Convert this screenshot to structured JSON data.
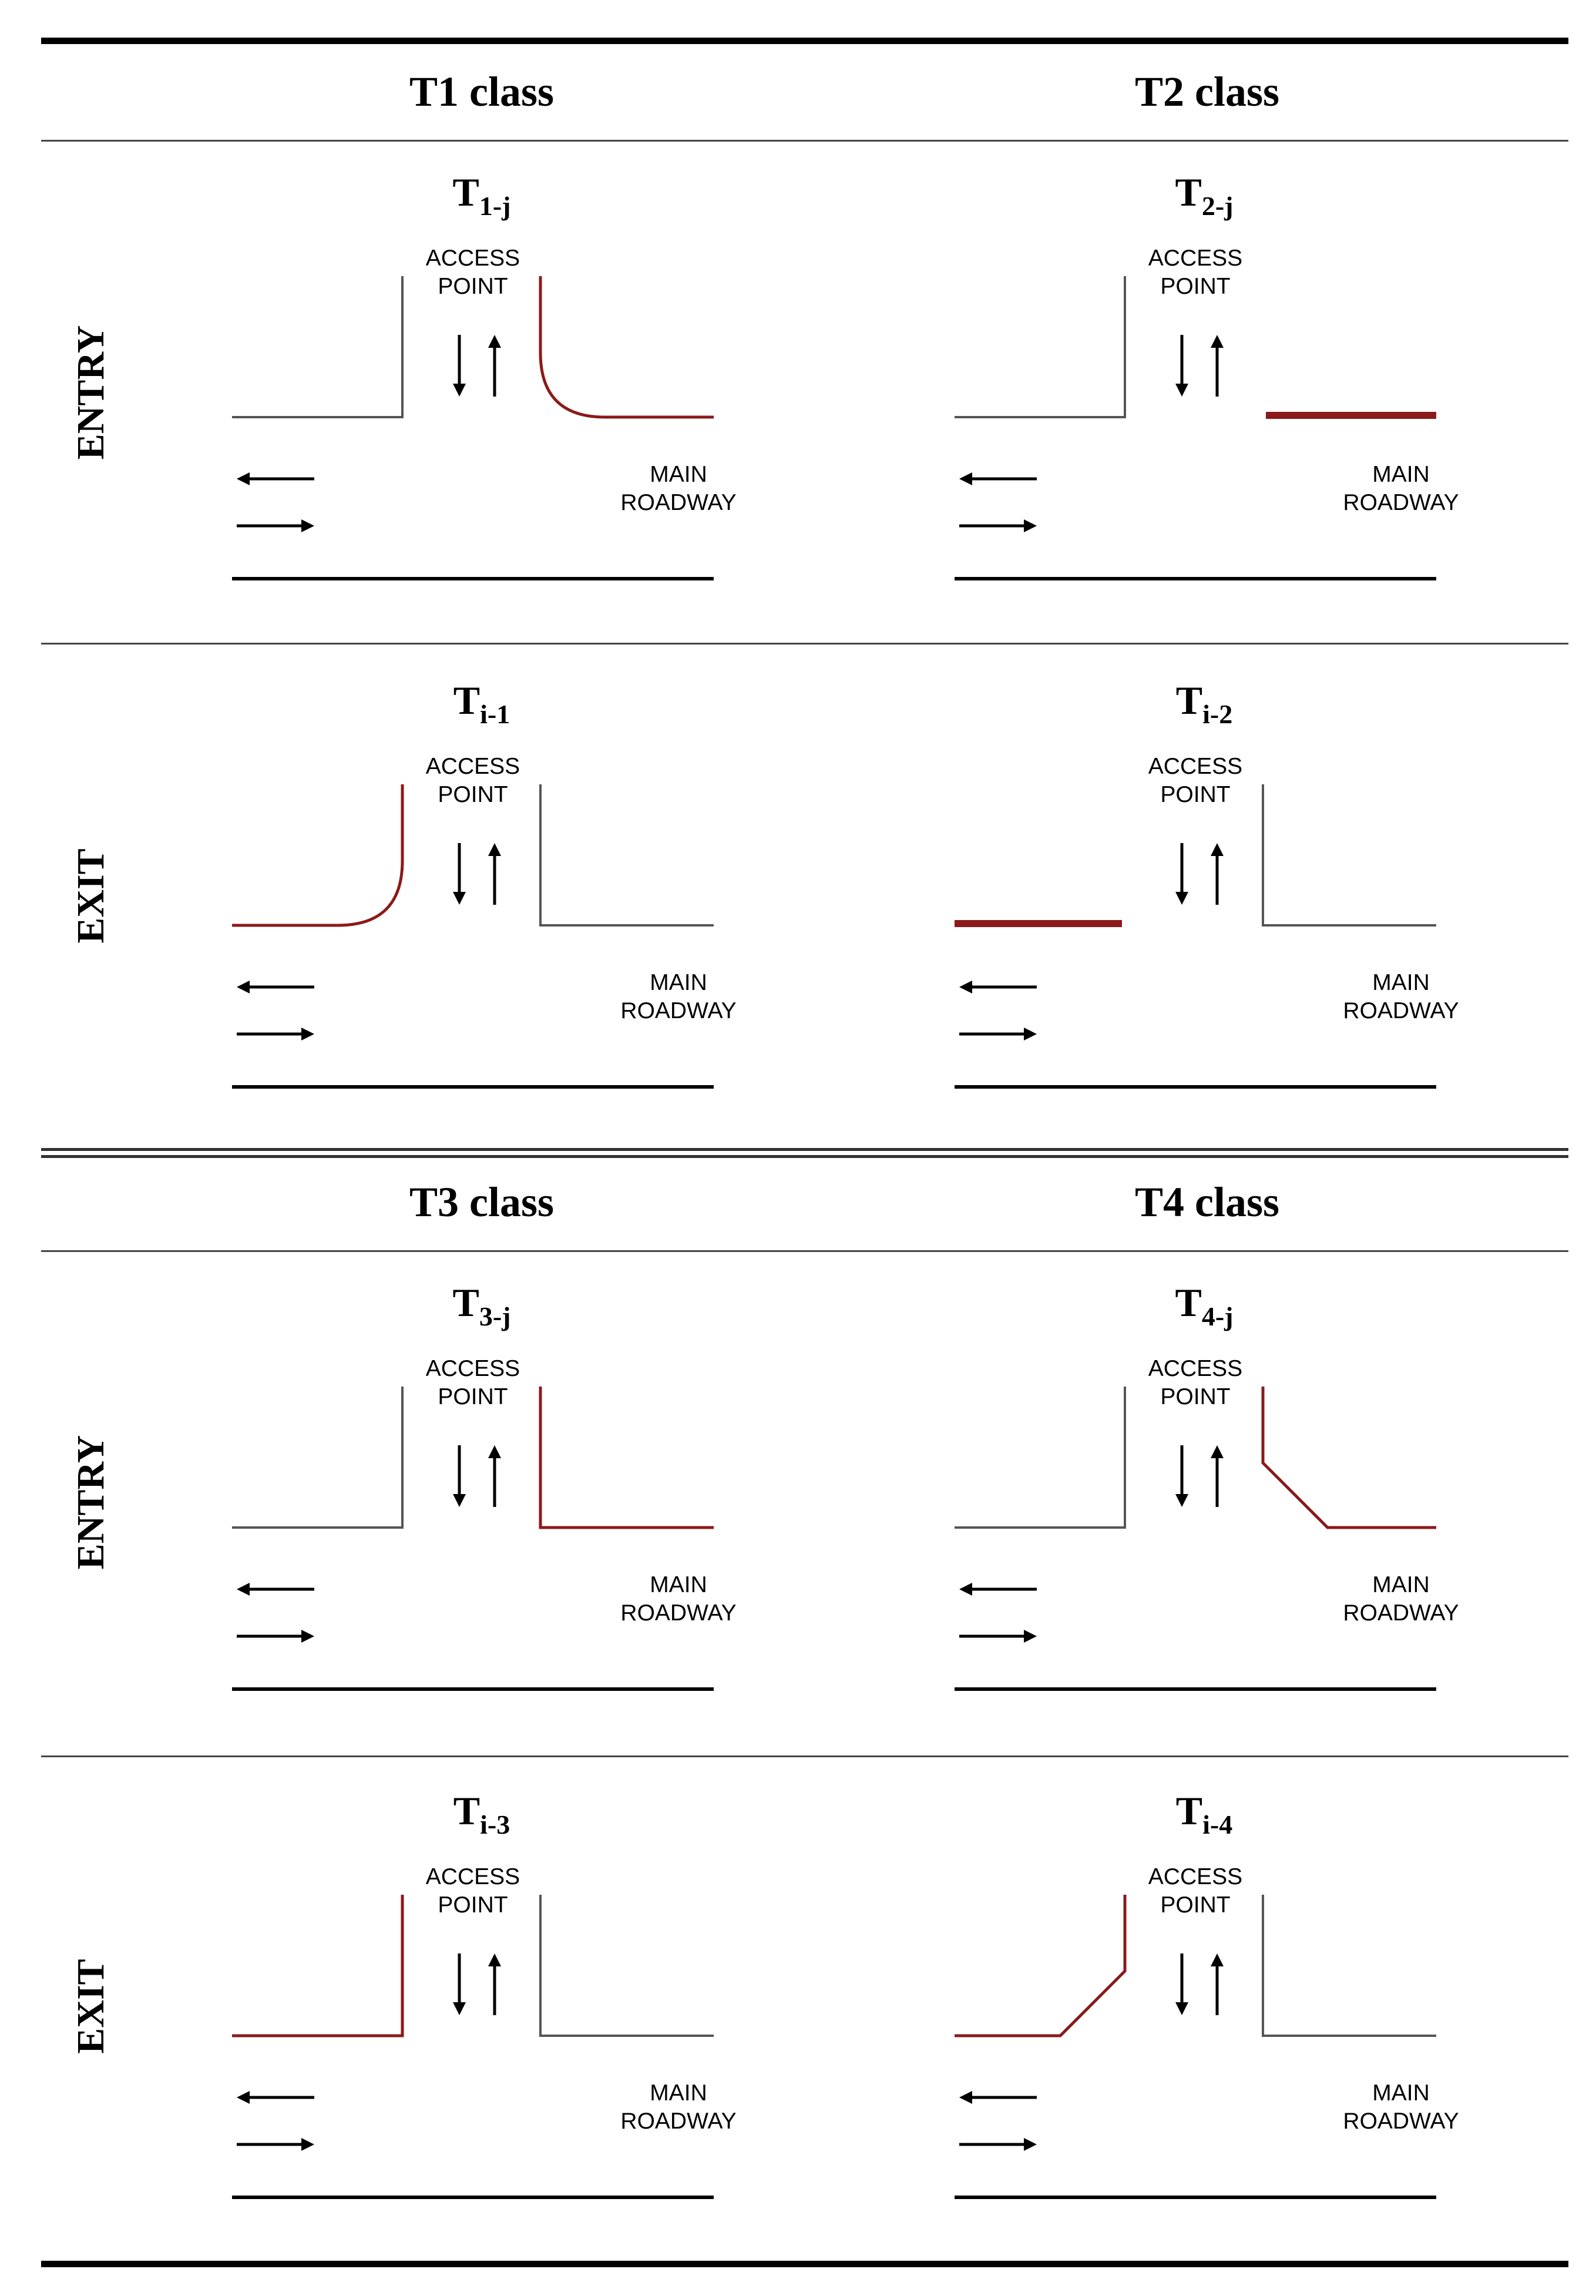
{
  "classes": [
    "T1 class",
    "T2 class",
    "T3 class",
    "T4 class"
  ],
  "row_labels": {
    "entry": "ENTRY",
    "exit": "EXIT"
  },
  "labels": {
    "access_line1": "ACCESS",
    "access_line2": "POINT",
    "main_line1": "MAIN",
    "main_line2": "ROADWAY"
  },
  "colors": {
    "highlight": "#8b1a1a",
    "road": "#555555",
    "ink": "#000000"
  },
  "diagrams": [
    {
      "id": "t1-entry",
      "title_main": "T",
      "title_sub": "1-j",
      "type": "entry",
      "shape": "curve"
    },
    {
      "id": "t2-entry",
      "title_main": "T",
      "title_sub": "2-j",
      "type": "entry",
      "shape": "lane"
    },
    {
      "id": "t1-exit",
      "title_main": "T",
      "title_sub": "i-1",
      "type": "exit",
      "shape": "curve"
    },
    {
      "id": "t2-exit",
      "title_main": "T",
      "title_sub": "i-2",
      "type": "exit",
      "shape": "lane"
    },
    {
      "id": "t3-entry",
      "title_main": "T",
      "title_sub": "3-j",
      "type": "entry",
      "shape": "square"
    },
    {
      "id": "t4-entry",
      "title_main": "T",
      "title_sub": "4-j",
      "type": "entry",
      "shape": "taper"
    },
    {
      "id": "t3-exit",
      "title_main": "T",
      "title_sub": "i-3",
      "type": "exit",
      "shape": "square"
    },
    {
      "id": "t4-exit",
      "title_main": "T",
      "title_sub": "i-4",
      "type": "exit",
      "shape": "taper"
    }
  ]
}
